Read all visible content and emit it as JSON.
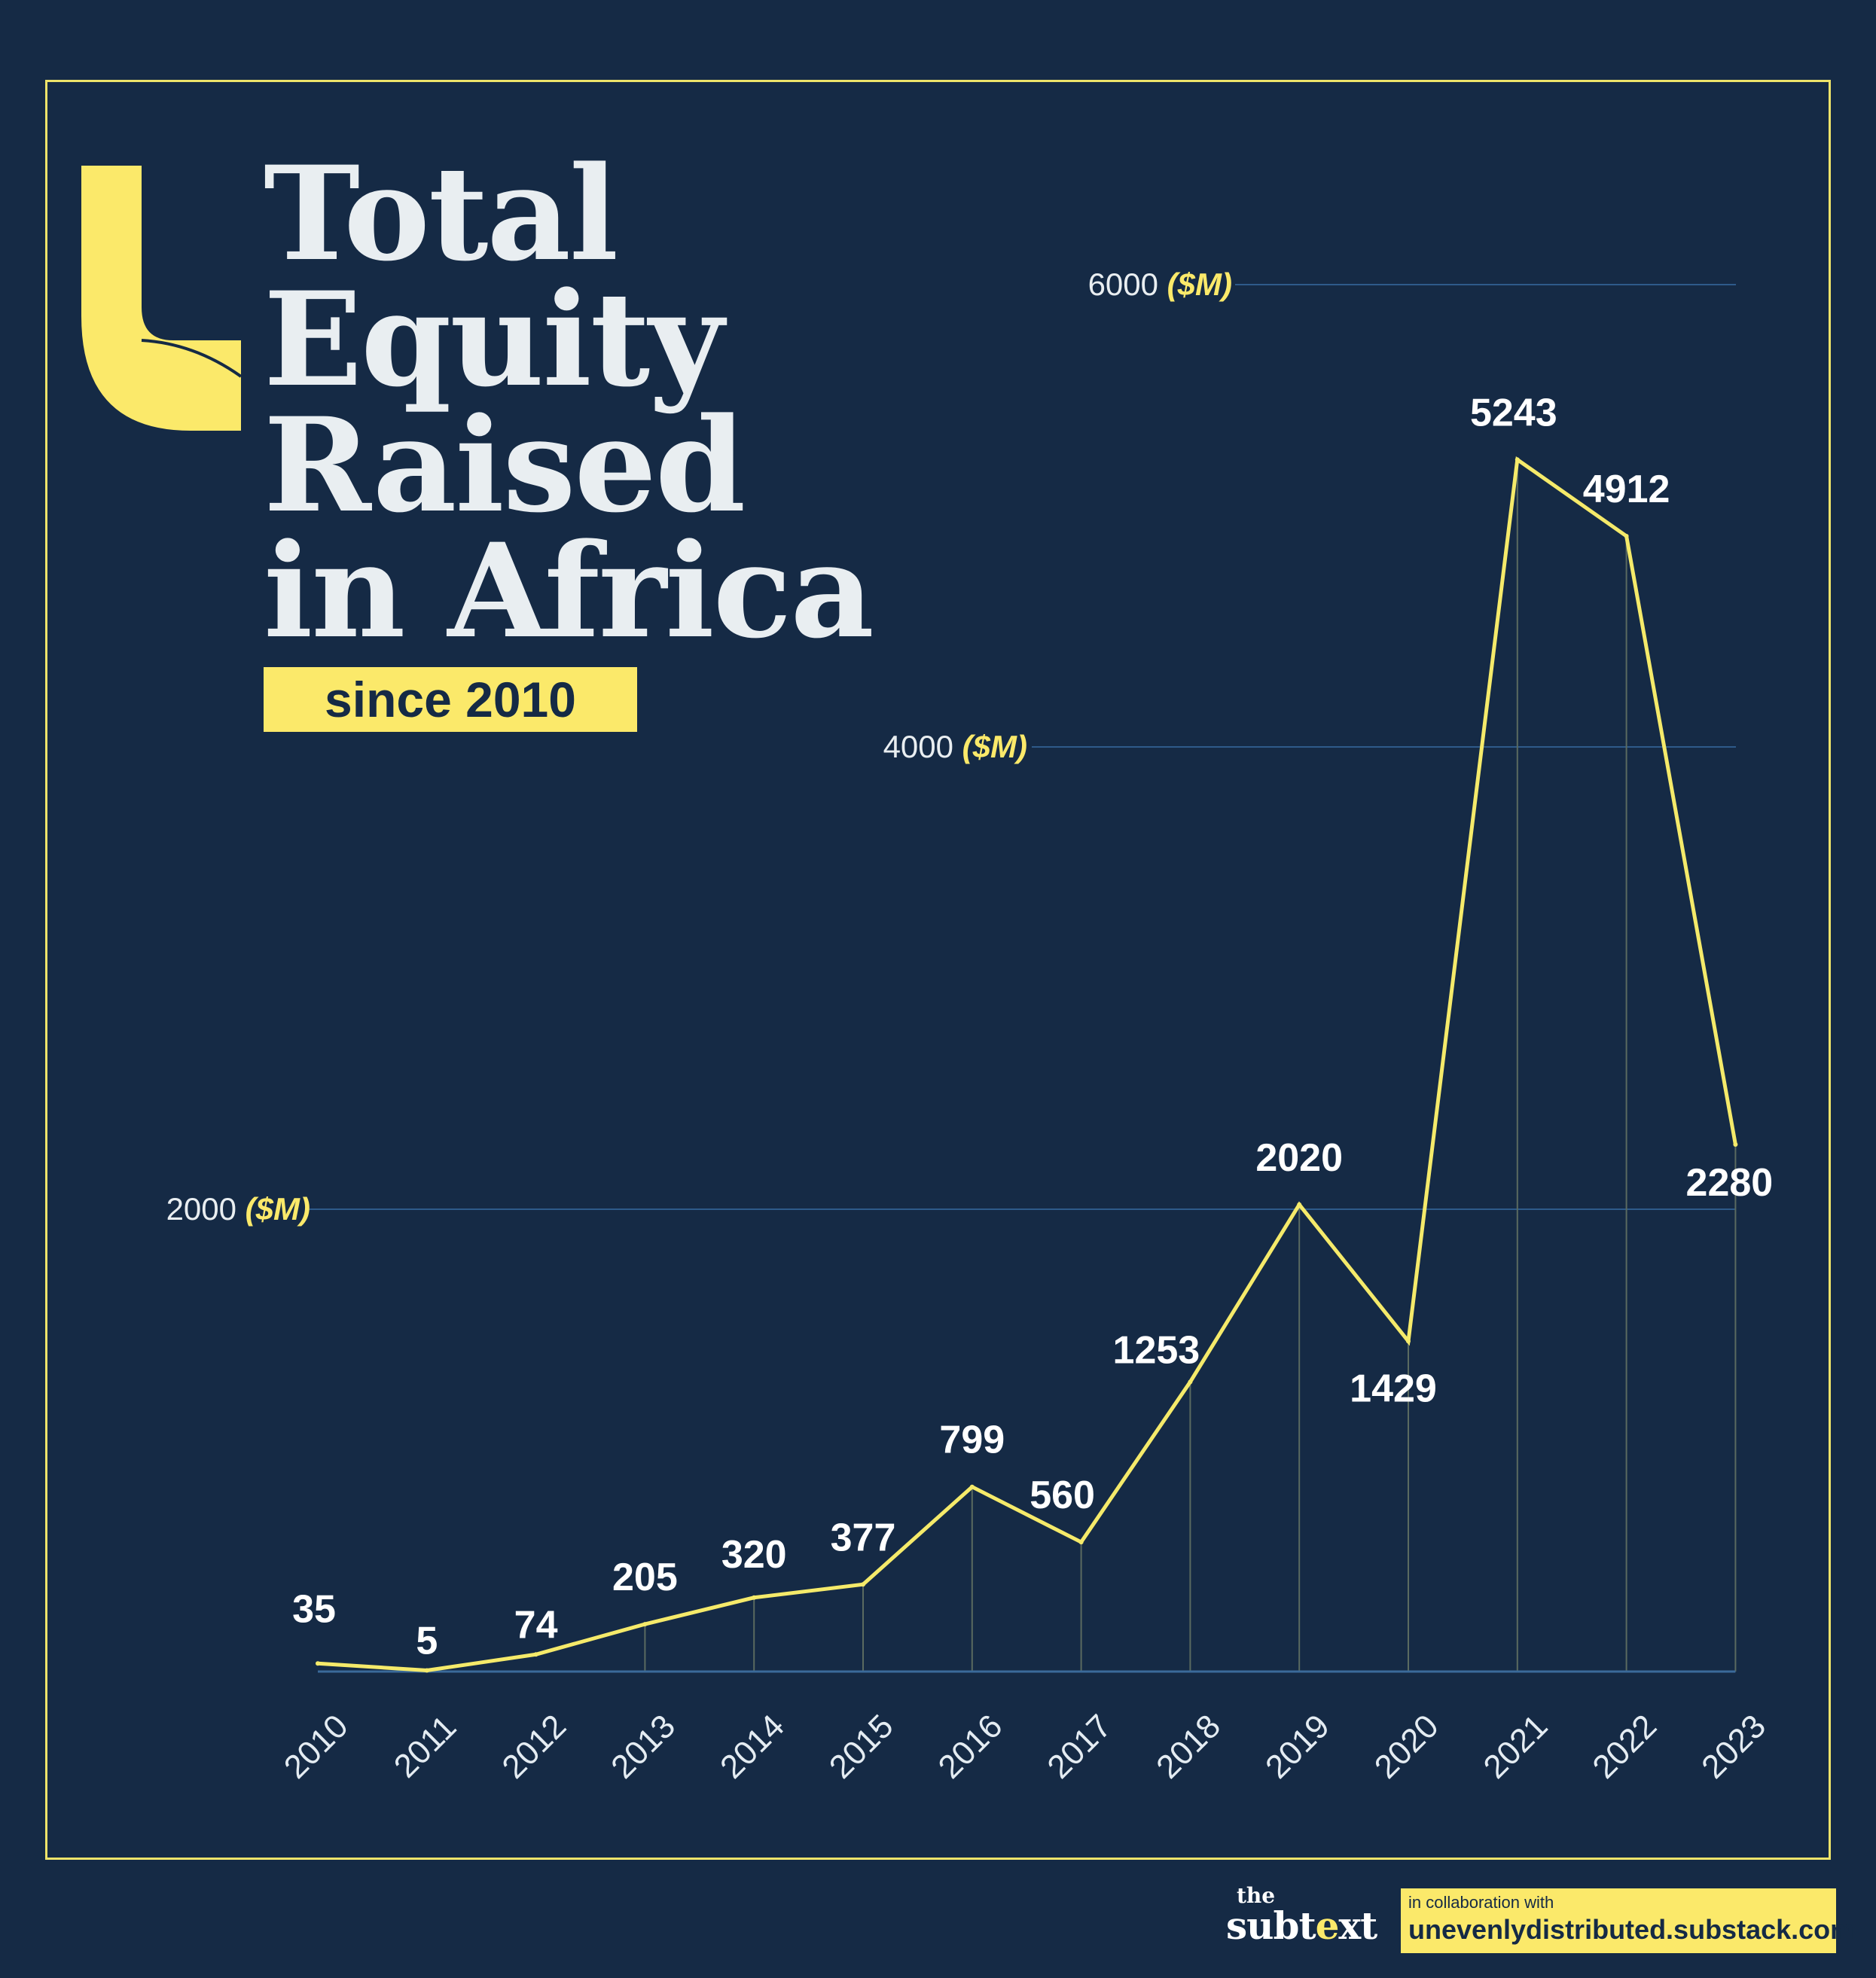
{
  "header": {
    "title_lines": [
      "Total",
      "Equity",
      "Raised",
      "in Africa"
    ],
    "subtitle": "since 2010"
  },
  "colors": {
    "background": "#152a45",
    "accent": "#fbe96a",
    "line": "#f5ea6a",
    "text": "#e9eef1",
    "gridline": "#2e5a8a",
    "axis": "#3a6a9a"
  },
  "footer": {
    "brand_top": "the",
    "brand_main_start": "subt",
    "brand_main_accent": "e",
    "brand_main_end": "xt",
    "collab_label": "in collaboration with",
    "collab_site": "unevenlydistributed.substack.com"
  },
  "chart_data": {
    "type": "line",
    "x": [
      "2010",
      "2011",
      "2012",
      "2013",
      "2014",
      "2015",
      "2016",
      "2017",
      "2018",
      "2019",
      "2020",
      "2021",
      "2022",
      "2023"
    ],
    "series": [
      {
        "values": [
          35,
          5,
          74,
          205,
          320,
          377,
          799,
          560,
          1253,
          2020,
          1429,
          5243,
          4912,
          2280
        ]
      }
    ],
    "y_ticks": [
      {
        "value": 2000,
        "label": "2000",
        "unit": "($M)"
      },
      {
        "value": 4000,
        "label": "4000",
        "unit": "($M)"
      },
      {
        "value": 6000,
        "label": "6000",
        "unit": "($M)"
      }
    ],
    "ylim": [
      0,
      6000
    ],
    "title": "",
    "xlabel": "",
    "ylabel": "",
    "grid": true
  }
}
